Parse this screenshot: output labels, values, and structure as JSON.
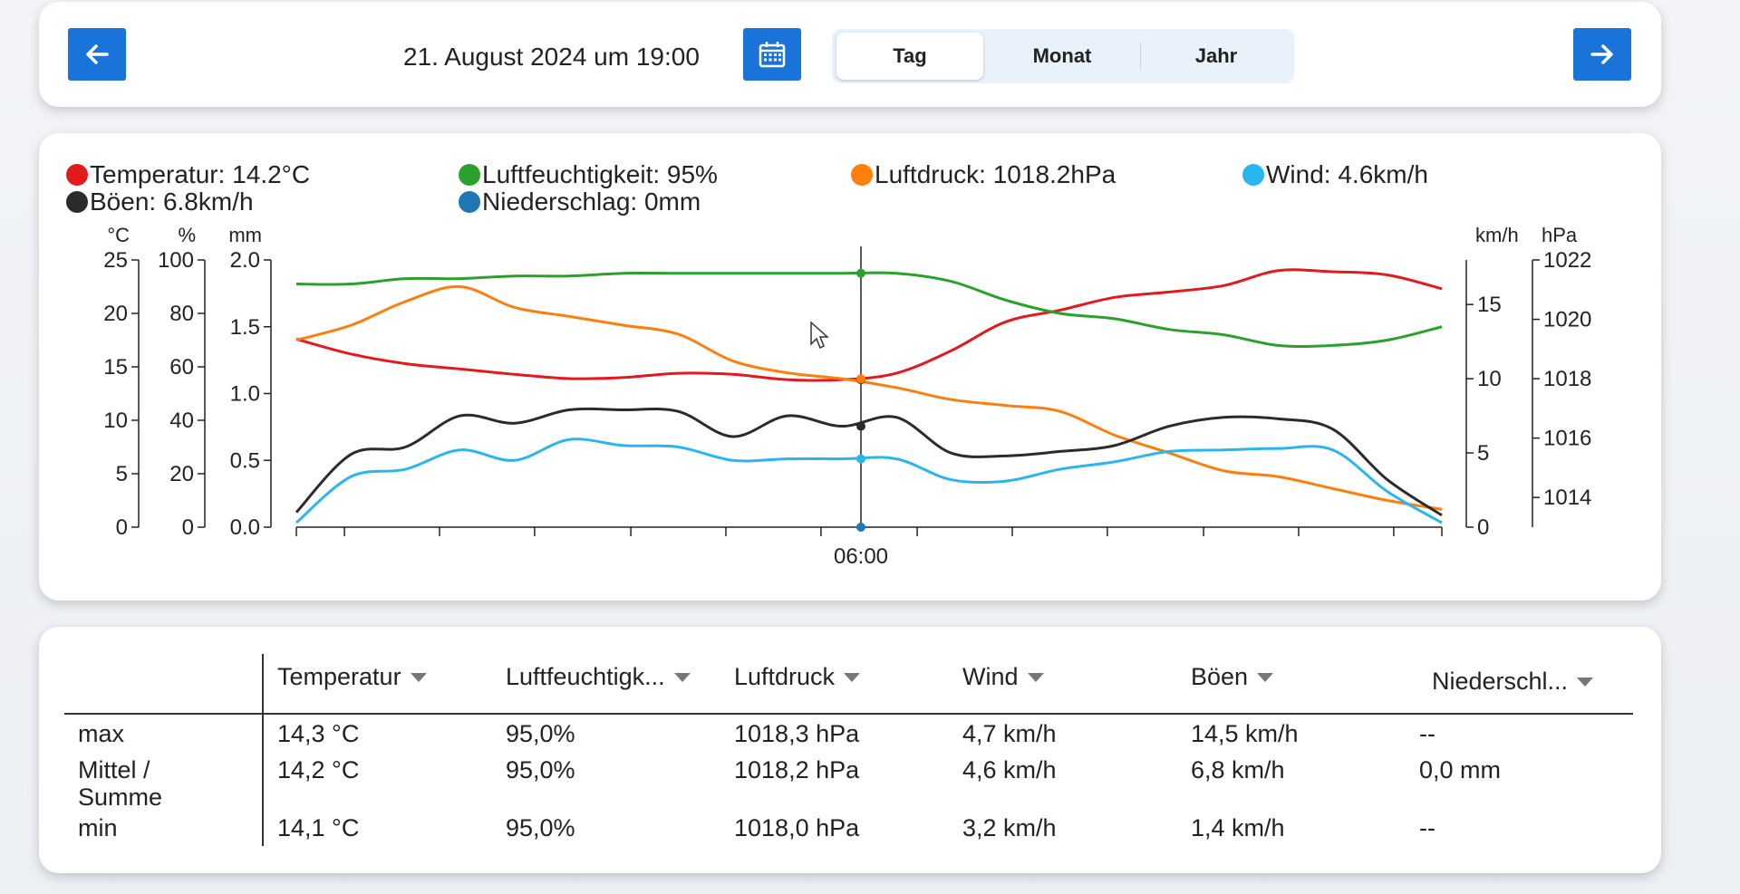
{
  "nav": {
    "date_label": "21. August 2024 um 19:00",
    "prev_icon": "arrow-left-icon",
    "next_icon": "arrow-right-icon",
    "calendar_icon": "calendar-icon",
    "tabs": [
      {
        "label": "Tag",
        "active": true
      },
      {
        "label": "Monat",
        "active": false
      },
      {
        "label": "Jahr",
        "active": false
      }
    ]
  },
  "legend": [
    {
      "label": "Temperatur: 14.2°C",
      "color": "#e31a1c"
    },
    {
      "label": "Luftfeuchtigkeit: 95%",
      "color": "#2ca02c"
    },
    {
      "label": "Luftdruck: 1018.2hPa",
      "color": "#ff7f0e"
    },
    {
      "label": "Wind: 4.6km/h",
      "color": "#2bb5ef"
    },
    {
      "label": "Böen: 6.8km/h",
      "color": "#2b2b2b"
    },
    {
      "label": "Niederschlag: 0mm",
      "color": "#1f77b4"
    }
  ],
  "chart_data": {
    "type": "line",
    "x_tick_labels": [
      "06:00"
    ],
    "cursor_x_label": "06:00",
    "axes": {
      "temperature": {
        "unit": "°C",
        "range": [
          0,
          25
        ],
        "ticks": [
          0,
          5,
          10,
          15,
          20,
          25
        ]
      },
      "humidity": {
        "unit": "%",
        "range": [
          0,
          100
        ],
        "ticks": [
          0,
          20,
          40,
          60,
          80,
          100
        ]
      },
      "precipitation": {
        "unit": "mm",
        "range": [
          0,
          2.0
        ],
        "ticks": [
          "0.0",
          "0.5",
          "1.0",
          "1.5",
          "2.0"
        ]
      },
      "wind": {
        "unit": "km/h",
        "range": [
          0,
          18
        ],
        "ticks": [
          0,
          5,
          10,
          15
        ]
      },
      "pressure": {
        "unit": "hPa",
        "range": [
          1013,
          1022
        ],
        "ticks": [
          1014,
          1016,
          1018,
          1020,
          1022
        ]
      }
    },
    "series": [
      {
        "name": "Temperatur",
        "color": "#e31a1c",
        "axis": "temperature",
        "values": [
          17.6,
          16.2,
          15.3,
          14.8,
          14.3,
          13.9,
          14.0,
          14.4,
          14.3,
          13.8,
          13.8,
          14.4,
          16.5,
          19.2,
          20.3,
          21.5,
          22.0,
          22.6,
          24.0,
          23.9,
          23.6,
          22.3
        ]
      },
      {
        "name": "Luftfeuchtigkeit",
        "color": "#2ca02c",
        "axis": "humidity",
        "values": [
          91,
          91,
          93,
          93,
          94,
          94,
          95,
          95,
          95,
          95,
          95,
          95,
          92,
          85,
          80,
          78,
          74,
          72,
          68,
          68,
          70,
          75
        ]
      },
      {
        "name": "Luftdruck",
        "color": "#ff7f0e",
        "axis": "pressure",
        "values": [
          1019.3,
          1019.8,
          1020.6,
          1021.1,
          1020.4,
          1020.1,
          1019.8,
          1019.5,
          1018.6,
          1018.2,
          1018.0,
          1017.7,
          1017.3,
          1017.1,
          1016.9,
          1016.1,
          1015.5,
          1014.9,
          1014.7,
          1014.3,
          1013.9,
          1013.6
        ]
      },
      {
        "name": "Wind",
        "color": "#2bb5ef",
        "axis": "wind",
        "values": [
          0.3,
          3.4,
          3.9,
          5.2,
          4.5,
          5.9,
          5.5,
          5.4,
          4.5,
          4.6,
          4.6,
          4.6,
          3.2,
          3.1,
          3.9,
          4.4,
          5.1,
          5.2,
          5.3,
          5.2,
          2.4,
          0.3
        ]
      },
      {
        "name": "Böen",
        "color": "#2b2b2b",
        "axis": "wind",
        "values": [
          1.0,
          4.9,
          5.4,
          7.5,
          7.0,
          7.9,
          7.9,
          7.8,
          6.1,
          7.5,
          6.8,
          7.4,
          5.0,
          4.8,
          5.1,
          5.5,
          6.8,
          7.4,
          7.3,
          6.6,
          3.2,
          0.8
        ]
      },
      {
        "name": "Niederschlag",
        "color": "#1f77b4",
        "axis": "precipitation",
        "values": [
          0,
          0,
          0,
          0,
          0,
          0,
          0,
          0,
          0,
          0,
          0,
          0,
          0,
          0,
          0,
          0,
          0,
          0,
          0,
          0,
          0,
          0
        ]
      }
    ]
  },
  "table": {
    "headers": [
      "Temperatur",
      "Luftfeuchtigk...",
      "Luftdruck",
      "Wind",
      "Böen",
      "Niederschl..."
    ],
    "rows": [
      {
        "label": "max",
        "cells": [
          "14,3 °C",
          "95,0%",
          "1018,3 hPa",
          "4,7 km/h",
          "14,5 km/h",
          "--"
        ]
      },
      {
        "label": "Mittel / Summe",
        "cells": [
          "14,2 °C",
          "95,0%",
          "1018,2 hPa",
          "4,6 km/h",
          "6,8 km/h",
          "0,0 mm"
        ]
      },
      {
        "label": "min",
        "cells": [
          "14,1 °C",
          "95,0%",
          "1018,0 hPa",
          "3,2 km/h",
          "1,4 km/h",
          "--"
        ]
      }
    ]
  }
}
